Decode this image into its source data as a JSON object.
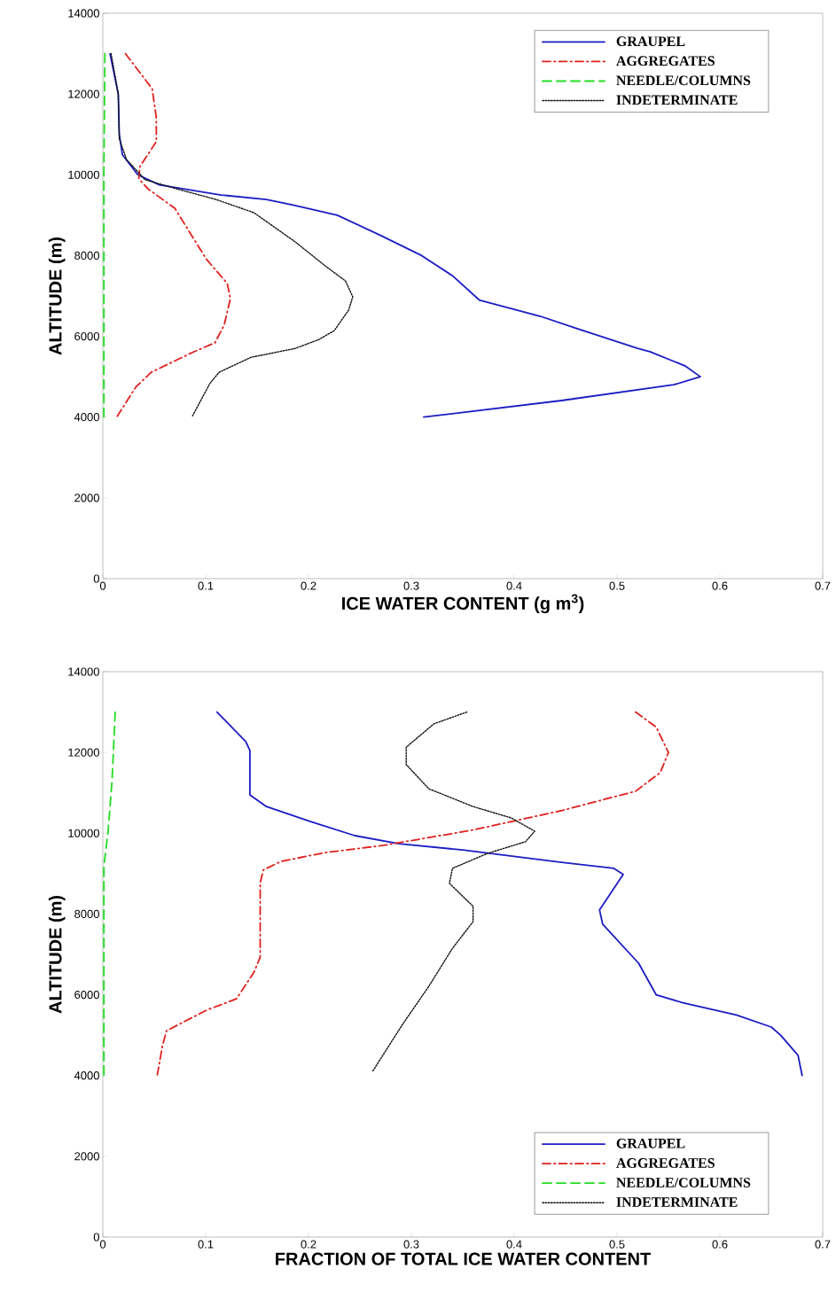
{
  "chart_data": [
    {
      "type": "line",
      "xlabel": "ICE WATER CONTENT (g m$^{3}$)",
      "ylabel": "ALTITUDE (m)",
      "xlim": [
        0,
        0.7
      ],
      "ylim": [
        0,
        14000
      ],
      "xticks": [
        0,
        0.1,
        0.2,
        0.3,
        0.4,
        0.5,
        0.6,
        0.7
      ],
      "yticks": [
        0,
        2000,
        4000,
        6000,
        8000,
        10000,
        12000,
        14000
      ],
      "grid": false,
      "legend": "top right",
      "series": [
        {
          "name": "GRAUPEL",
          "color": "#1c1cc4",
          "line_style": "solid",
          "x": [
            0.007,
            0.015,
            0.016,
            0.019,
            0.034,
            0.055,
            0.115,
            0.159,
            0.185,
            0.228,
            0.27,
            0.31,
            0.34,
            0.366,
            0.425,
            0.46,
            0.52,
            0.532,
            0.566,
            0.581,
            0.555,
            0.446,
            0.312
          ],
          "values": [
            13000,
            12000,
            11000,
            10500,
            10000,
            9750,
            9500,
            9390,
            9250,
            9000,
            8500,
            8000,
            7500,
            6900,
            6500,
            6200,
            5700,
            5620,
            5270,
            5000,
            4800,
            4410,
            4000
          ]
        },
        {
          "name": "AGGREGATES",
          "color": "#e0201c",
          "line_style": "dashdot",
          "x": [
            0.022,
            0.048,
            0.052,
            0.052,
            0.036,
            0.035,
            0.044,
            0.07,
            0.087,
            0.101,
            0.121,
            0.124,
            0.118,
            0.109,
            0.087,
            0.047,
            0.032,
            0.014
          ],
          "values": [
            13000,
            12130,
            11410,
            10820,
            10200,
            9900,
            9650,
            9170,
            8470,
            7900,
            7310,
            6930,
            6280,
            5840,
            5600,
            5110,
            4740,
            4020
          ]
        },
        {
          "name": "NEEDLE/COLUMNS",
          "color": "#22dd22",
          "line_style": "dashed",
          "x": [
            0.002,
            0.001,
            0.001
          ],
          "values": [
            13000,
            10000,
            4000
          ]
        },
        {
          "name": "INDETERMINATE",
          "color": "#111111",
          "line_style": "dotted",
          "x": [
            0.008,
            0.015,
            0.016,
            0.023,
            0.041,
            0.072,
            0.11,
            0.147,
            0.187,
            0.216,
            0.236,
            0.243,
            0.239,
            0.225,
            0.21,
            0.187,
            0.144,
            0.113,
            0.104,
            0.087
          ],
          "values": [
            13000,
            12000,
            10890,
            10380,
            9880,
            9650,
            9390,
            9060,
            8340,
            7750,
            7370,
            6980,
            6650,
            6140,
            5920,
            5700,
            5480,
            5110,
            4830,
            4020
          ]
        }
      ]
    },
    {
      "type": "line",
      "xlabel": "FRACTION OF TOTAL ICE WATER CONTENT",
      "ylabel": "ALTITUDE (m)",
      "xlim": [
        0,
        0.7
      ],
      "ylim": [
        0,
        14000
      ],
      "xticks": [
        0,
        0.1,
        0.2,
        0.3,
        0.4,
        0.5,
        0.6,
        0.7
      ],
      "yticks": [
        0,
        2000,
        4000,
        6000,
        8000,
        10000,
        12000,
        14000
      ],
      "grid": false,
      "legend": "bottom right",
      "series": [
        {
          "name": "GRAUPEL",
          "color": "#1c1cc4",
          "line_style": "solid",
          "x": [
            0.111,
            0.139,
            0.143,
            0.143,
            0.159,
            0.202,
            0.245,
            0.288,
            0.348,
            0.446,
            0.497,
            0.506,
            0.483,
            0.486,
            0.521,
            0.538,
            0.564,
            0.616,
            0.65,
            0.659,
            0.676,
            0.68
          ],
          "values": [
            13000,
            12270,
            12050,
            10950,
            10660,
            10290,
            9940,
            9740,
            9590,
            9280,
            9130,
            8980,
            8100,
            7750,
            6780,
            6000,
            5800,
            5500,
            5200,
            5000,
            4500,
            4000
          ]
        },
        {
          "name": "AGGREGATES",
          "color": "#e0201c",
          "line_style": "dashdot",
          "x": [
            0.518,
            0.538,
            0.55,
            0.542,
            0.518,
            0.446,
            0.36,
            0.273,
            0.216,
            0.173,
            0.156,
            0.153,
            0.153,
            0.147,
            0.13,
            0.101,
            0.062,
            0.058,
            0.053
          ],
          "values": [
            13000,
            12630,
            12000,
            11500,
            11040,
            10560,
            10080,
            9700,
            9520,
            9300,
            9090,
            8760,
            6930,
            6560,
            5900,
            5620,
            5110,
            4740,
            4020
          ]
        },
        {
          "name": "NEEDLE/COLUMNS",
          "color": "#22dd22",
          "line_style": "dashed",
          "x": [
            0.012,
            0.009,
            0.005,
            0.001,
            0.001
          ],
          "values": [
            13000,
            11320,
            10010,
            9190,
            4000
          ]
        },
        {
          "name": "INDETERMINATE",
          "color": "#111111",
          "line_style": "dotted",
          "x": [
            0.354,
            0.322,
            0.295,
            0.295,
            0.317,
            0.36,
            0.397,
            0.42,
            0.411,
            0.374,
            0.34,
            0.337,
            0.36,
            0.36,
            0.34,
            0.317,
            0.291,
            0.262
          ],
          "values": [
            13000,
            12710,
            12130,
            11700,
            11100,
            10660,
            10380,
            10050,
            9790,
            9500,
            9130,
            8760,
            8190,
            7810,
            7150,
            6210,
            5250,
            4090
          ]
        }
      ]
    }
  ]
}
